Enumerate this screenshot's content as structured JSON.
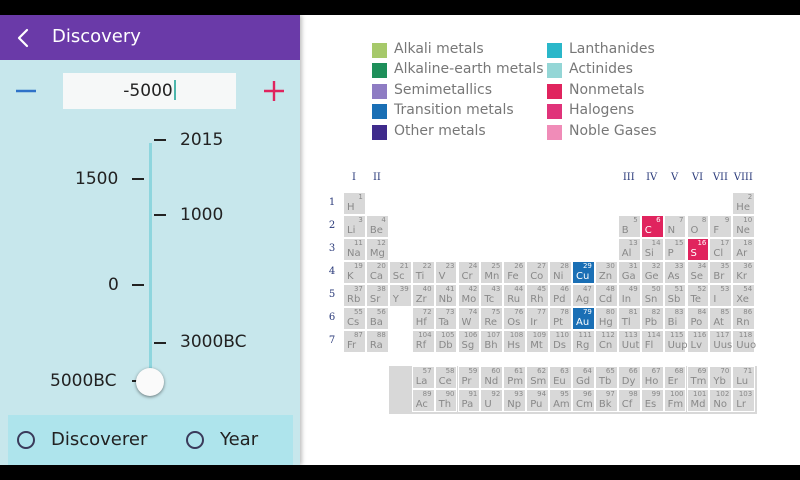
{
  "app": {
    "title": "Discovery",
    "year_value": "-5000"
  },
  "colors": {
    "appbar": "#6a3aa8",
    "drawer_bg": "#c7e7ec",
    "accent_minus": "#2f72c8",
    "accent_plus": "#e0245e",
    "track": "#8ed6de"
  },
  "slider": {
    "left_labels": [
      "1500",
      "0",
      "5000BC"
    ],
    "right_labels": [
      "2015",
      "1000",
      "3000BC"
    ],
    "current": "5000BC"
  },
  "sort": {
    "options": [
      {
        "label": "Discoverer",
        "selected": false
      },
      {
        "label": "Year",
        "selected": false
      }
    ]
  },
  "legend": [
    {
      "label": "Alkali metals",
      "color": "#a6c96a"
    },
    {
      "label": "Alkaline-earth metals",
      "color": "#1e8f5a"
    },
    {
      "label": "Semimetallics",
      "color": "#8e7cc3"
    },
    {
      "label": "Transition metals",
      "color": "#1a6fb5"
    },
    {
      "label": "Other metals",
      "color": "#3f2b8c"
    },
    {
      "label": "Lanthanides",
      "color": "#2ab7c9"
    },
    {
      "label": "Actinides",
      "color": "#94d6d6"
    },
    {
      "label": "Nonmetals",
      "color": "#e0245e"
    },
    {
      "label": "Halogens",
      "color": "#e0337a"
    },
    {
      "label": "Noble Gases",
      "color": "#f08cb8"
    }
  ],
  "periodic_table": {
    "group_labels_left": [
      "I",
      "II"
    ],
    "group_labels_right": [
      "III",
      "IV",
      "V",
      "VI",
      "VII",
      "VIII"
    ],
    "period_labels": [
      "1",
      "2",
      "3",
      "4",
      "5",
      "6",
      "7"
    ],
    "elements": [
      {
        "n": "1",
        "s": "H",
        "r": 1,
        "c": 1
      },
      {
        "n": "2",
        "s": "He",
        "r": 1,
        "c": 18
      },
      {
        "n": "3",
        "s": "Li",
        "r": 2,
        "c": 1
      },
      {
        "n": "4",
        "s": "Be",
        "r": 2,
        "c": 2
      },
      {
        "n": "5",
        "s": "B",
        "r": 2,
        "c": 13
      },
      {
        "n": "6",
        "s": "C",
        "r": 2,
        "c": 14,
        "hl": "#e0245e"
      },
      {
        "n": "7",
        "s": "N",
        "r": 2,
        "c": 15
      },
      {
        "n": "8",
        "s": "O",
        "r": 2,
        "c": 16
      },
      {
        "n": "9",
        "s": "F",
        "r": 2,
        "c": 17
      },
      {
        "n": "10",
        "s": "Ne",
        "r": 2,
        "c": 18
      },
      {
        "n": "11",
        "s": "Na",
        "r": 3,
        "c": 1
      },
      {
        "n": "12",
        "s": "Mg",
        "r": 3,
        "c": 2
      },
      {
        "n": "13",
        "s": "Al",
        "r": 3,
        "c": 13
      },
      {
        "n": "14",
        "s": "Si",
        "r": 3,
        "c": 14
      },
      {
        "n": "15",
        "s": "P",
        "r": 3,
        "c": 15
      },
      {
        "n": "16",
        "s": "S",
        "r": 3,
        "c": 16,
        "hl": "#e0245e"
      },
      {
        "n": "17",
        "s": "Cl",
        "r": 3,
        "c": 17
      },
      {
        "n": "18",
        "s": "Ar",
        "r": 3,
        "c": 18
      },
      {
        "n": "19",
        "s": "K",
        "r": 4,
        "c": 1
      },
      {
        "n": "20",
        "s": "Ca",
        "r": 4,
        "c": 2
      },
      {
        "n": "21",
        "s": "Sc",
        "r": 4,
        "c": 3
      },
      {
        "n": "22",
        "s": "Ti",
        "r": 4,
        "c": 4
      },
      {
        "n": "23",
        "s": "V",
        "r": 4,
        "c": 5
      },
      {
        "n": "24",
        "s": "Cr",
        "r": 4,
        "c": 6
      },
      {
        "n": "25",
        "s": "Mn",
        "r": 4,
        "c": 7
      },
      {
        "n": "26",
        "s": "Fe",
        "r": 4,
        "c": 8
      },
      {
        "n": "27",
        "s": "Co",
        "r": 4,
        "c": 9
      },
      {
        "n": "28",
        "s": "Ni",
        "r": 4,
        "c": 10
      },
      {
        "n": "29",
        "s": "Cu",
        "r": 4,
        "c": 11,
        "hl": "#1a6fb5"
      },
      {
        "n": "30",
        "s": "Zn",
        "r": 4,
        "c": 12
      },
      {
        "n": "31",
        "s": "Ga",
        "r": 4,
        "c": 13
      },
      {
        "n": "32",
        "s": "Ge",
        "r": 4,
        "c": 14
      },
      {
        "n": "33",
        "s": "As",
        "r": 4,
        "c": 15
      },
      {
        "n": "34",
        "s": "Se",
        "r": 4,
        "c": 16
      },
      {
        "n": "35",
        "s": "Br",
        "r": 4,
        "c": 17
      },
      {
        "n": "36",
        "s": "Kr",
        "r": 4,
        "c": 18
      },
      {
        "n": "37",
        "s": "Rb",
        "r": 5,
        "c": 1
      },
      {
        "n": "38",
        "s": "Sr",
        "r": 5,
        "c": 2
      },
      {
        "n": "39",
        "s": "Y",
        "r": 5,
        "c": 3
      },
      {
        "n": "40",
        "s": "Zr",
        "r": 5,
        "c": 4
      },
      {
        "n": "41",
        "s": "Nb",
        "r": 5,
        "c": 5
      },
      {
        "n": "42",
        "s": "Mo",
        "r": 5,
        "c": 6
      },
      {
        "n": "43",
        "s": "Tc",
        "r": 5,
        "c": 7
      },
      {
        "n": "44",
        "s": "Ru",
        "r": 5,
        "c": 8
      },
      {
        "n": "45",
        "s": "Rh",
        "r": 5,
        "c": 9
      },
      {
        "n": "46",
        "s": "Pd",
        "r": 5,
        "c": 10
      },
      {
        "n": "47",
        "s": "Ag",
        "r": 5,
        "c": 11
      },
      {
        "n": "48",
        "s": "Cd",
        "r": 5,
        "c": 12
      },
      {
        "n": "49",
        "s": "In",
        "r": 5,
        "c": 13
      },
      {
        "n": "50",
        "s": "Sn",
        "r": 5,
        "c": 14
      },
      {
        "n": "51",
        "s": "Sb",
        "r": 5,
        "c": 15
      },
      {
        "n": "52",
        "s": "Te",
        "r": 5,
        "c": 16
      },
      {
        "n": "53",
        "s": "I",
        "r": 5,
        "c": 17
      },
      {
        "n": "54",
        "s": "Xe",
        "r": 5,
        "c": 18
      },
      {
        "n": "55",
        "s": "Cs",
        "r": 6,
        "c": 1
      },
      {
        "n": "56",
        "s": "Ba",
        "r": 6,
        "c": 2
      },
      {
        "n": "72",
        "s": "Hf",
        "r": 6,
        "c": 4
      },
      {
        "n": "73",
        "s": "Ta",
        "r": 6,
        "c": 5
      },
      {
        "n": "74",
        "s": "W",
        "r": 6,
        "c": 6
      },
      {
        "n": "75",
        "s": "Re",
        "r": 6,
        "c": 7
      },
      {
        "n": "76",
        "s": "Os",
        "r": 6,
        "c": 8
      },
      {
        "n": "77",
        "s": "Ir",
        "r": 6,
        "c": 9
      },
      {
        "n": "78",
        "s": "Pt",
        "r": 6,
        "c": 10
      },
      {
        "n": "79",
        "s": "Au",
        "r": 6,
        "c": 11,
        "hl": "#1a6fb5"
      },
      {
        "n": "80",
        "s": "Hg",
        "r": 6,
        "c": 12
      },
      {
        "n": "81",
        "s": "Tl",
        "r": 6,
        "c": 13
      },
      {
        "n": "82",
        "s": "Pb",
        "r": 6,
        "c": 14
      },
      {
        "n": "83",
        "s": "Bi",
        "r": 6,
        "c": 15
      },
      {
        "n": "84",
        "s": "Po",
        "r": 6,
        "c": 16
      },
      {
        "n": "85",
        "s": "At",
        "r": 6,
        "c": 17
      },
      {
        "n": "86",
        "s": "Rn",
        "r": 6,
        "c": 18
      },
      {
        "n": "87",
        "s": "Fr",
        "r": 7,
        "c": 1
      },
      {
        "n": "88",
        "s": "Ra",
        "r": 7,
        "c": 2
      },
      {
        "n": "104",
        "s": "Rf",
        "r": 7,
        "c": 4
      },
      {
        "n": "105",
        "s": "Db",
        "r": 7,
        "c": 5
      },
      {
        "n": "106",
        "s": "Sg",
        "r": 7,
        "c": 6
      },
      {
        "n": "107",
        "s": "Bh",
        "r": 7,
        "c": 7
      },
      {
        "n": "108",
        "s": "Hs",
        "r": 7,
        "c": 8
      },
      {
        "n": "109",
        "s": "Mt",
        "r": 7,
        "c": 9
      },
      {
        "n": "110",
        "s": "Ds",
        "r": 7,
        "c": 10
      },
      {
        "n": "111",
        "s": "Rg",
        "r": 7,
        "c": 11
      },
      {
        "n": "112",
        "s": "Cn",
        "r": 7,
        "c": 12
      },
      {
        "n": "113",
        "s": "Uut",
        "r": 7,
        "c": 13
      },
      {
        "n": "114",
        "s": "Fl",
        "r": 7,
        "c": 14
      },
      {
        "n": "115",
        "s": "Uup",
        "r": 7,
        "c": 15
      },
      {
        "n": "116",
        "s": "Lv",
        "r": 7,
        "c": 16
      },
      {
        "n": "117",
        "s": "Uus",
        "r": 7,
        "c": 17
      },
      {
        "n": "118",
        "s": "Uuo",
        "r": 7,
        "c": 18
      },
      {
        "n": "57",
        "s": "La",
        "r": 9,
        "c": 4
      },
      {
        "n": "58",
        "s": "Ce",
        "r": 9,
        "c": 5
      },
      {
        "n": "59",
        "s": "Pr",
        "r": 9,
        "c": 6
      },
      {
        "n": "60",
        "s": "Nd",
        "r": 9,
        "c": 7
      },
      {
        "n": "61",
        "s": "Pm",
        "r": 9,
        "c": 8
      },
      {
        "n": "62",
        "s": "Sm",
        "r": 9,
        "c": 9
      },
      {
        "n": "63",
        "s": "Eu",
        "r": 9,
        "c": 10
      },
      {
        "n": "64",
        "s": "Gd",
        "r": 9,
        "c": 11
      },
      {
        "n": "65",
        "s": "Tb",
        "r": 9,
        "c": 12
      },
      {
        "n": "66",
        "s": "Dy",
        "r": 9,
        "c": 13
      },
      {
        "n": "67",
        "s": "Ho",
        "r": 9,
        "c": 14
      },
      {
        "n": "68",
        "s": "Er",
        "r": 9,
        "c": 15
      },
      {
        "n": "69",
        "s": "Tm",
        "r": 9,
        "c": 16
      },
      {
        "n": "70",
        "s": "Yb",
        "r": 9,
        "c": 17
      },
      {
        "n": "71",
        "s": "Lu",
        "r": 9,
        "c": 18
      },
      {
        "n": "89",
        "s": "Ac",
        "r": 10,
        "c": 4
      },
      {
        "n": "90",
        "s": "Th",
        "r": 10,
        "c": 5
      },
      {
        "n": "91",
        "s": "Pa",
        "r": 10,
        "c": 6
      },
      {
        "n": "92",
        "s": "U",
        "r": 10,
        "c": 7
      },
      {
        "n": "93",
        "s": "Np",
        "r": 10,
        "c": 8
      },
      {
        "n": "94",
        "s": "Pu",
        "r": 10,
        "c": 9
      },
      {
        "n": "95",
        "s": "Am",
        "r": 10,
        "c": 10
      },
      {
        "n": "96",
        "s": "Cm",
        "r": 10,
        "c": 11
      },
      {
        "n": "97",
        "s": "Bk",
        "r": 10,
        "c": 12
      },
      {
        "n": "98",
        "s": "Cf",
        "r": 10,
        "c": 13
      },
      {
        "n": "99",
        "s": "Es",
        "r": 10,
        "c": 14
      },
      {
        "n": "100",
        "s": "Fm",
        "r": 10,
        "c": 15
      },
      {
        "n": "101",
        "s": "Md",
        "r": 10,
        "c": 16
      },
      {
        "n": "102",
        "s": "No",
        "r": 10,
        "c": 17
      },
      {
        "n": "103",
        "s": "Lr",
        "r": 10,
        "c": 18
      }
    ]
  }
}
